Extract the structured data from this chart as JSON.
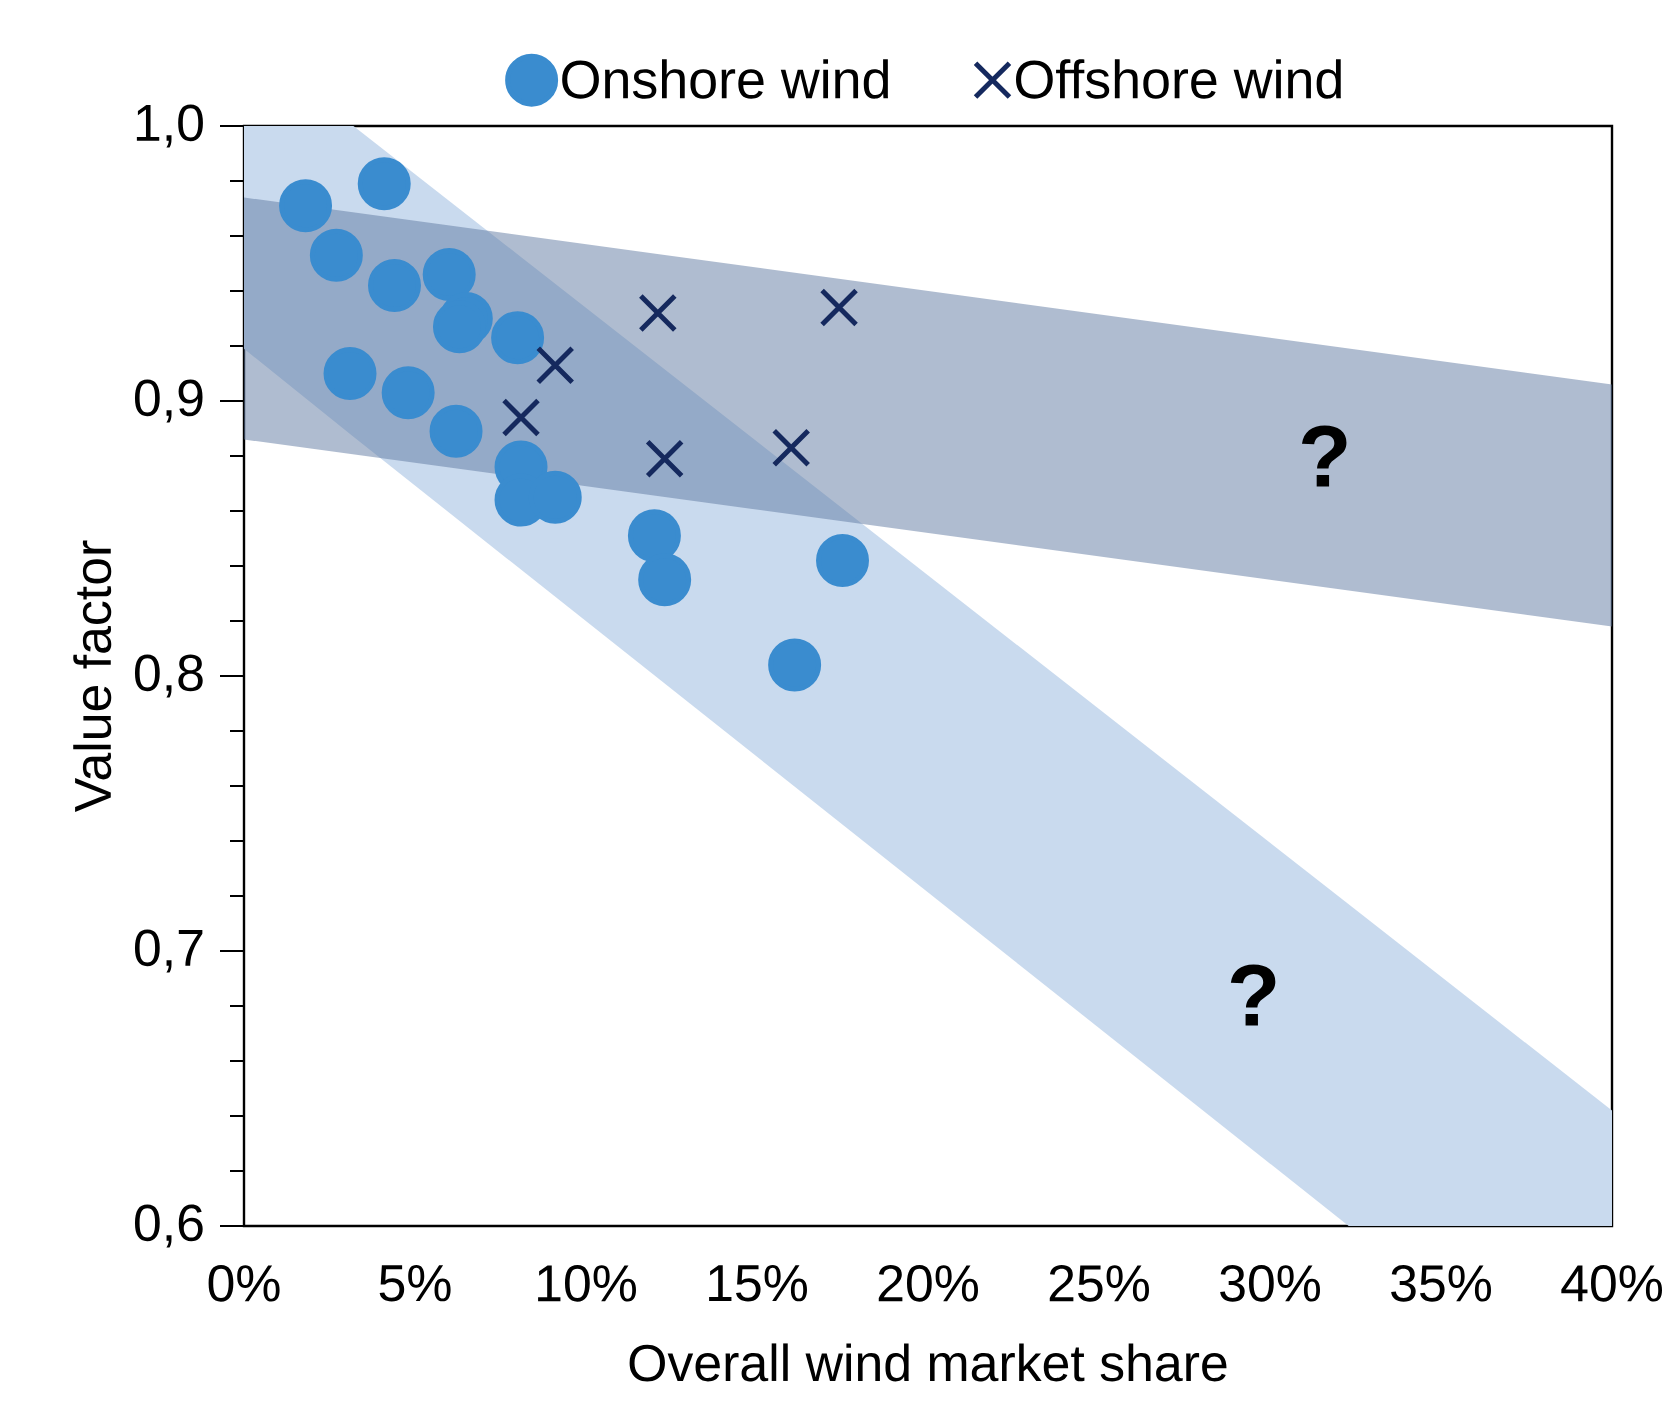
{
  "chart_data": {
    "type": "scatter",
    "xlabel": "Overall wind market share",
    "ylabel": "Value factor",
    "xlim": [
      0,
      0.4
    ],
    "ylim": [
      0.6,
      1.0
    ],
    "xticks": [
      {
        "value": 0,
        "label": "0%"
      },
      {
        "value": 0.05,
        "label": "5%"
      },
      {
        "value": 0.1,
        "label": "10%"
      },
      {
        "value": 0.15,
        "label": "15%"
      },
      {
        "value": 0.2,
        "label": "20%"
      },
      {
        "value": 0.25,
        "label": "25%"
      },
      {
        "value": 0.3,
        "label": "30%"
      },
      {
        "value": 0.35,
        "label": "35%"
      },
      {
        "value": 0.4,
        "label": "40%"
      }
    ],
    "yticks": [
      {
        "value": 0.6,
        "label": "0,6"
      },
      {
        "value": 0.7,
        "label": "0,7"
      },
      {
        "value": 0.8,
        "label": "0,8"
      },
      {
        "value": 0.9,
        "label": "0,9"
      },
      {
        "value": 1.0,
        "label": "1,0"
      }
    ],
    "grid": false,
    "legend": "top",
    "series": [
      {
        "type": "area",
        "color": "#c9daee",
        "x": [
          0,
          0.032,
          0.323,
          0.4
        ],
        "values": [
          null,
          null,
          null,
          null
        ],
        "upper": [
          1.0,
          1.0,
          0.717,
          0.642
        ],
        "lower": [
          0.919,
          0.887,
          0.6,
          0.6
        ]
      },
      {
        "type": "area",
        "color": "#5f7aa2",
        "x": [
          0,
          0.4
        ],
        "values": [
          null,
          null
        ],
        "upper": [
          0.974,
          0.906
        ],
        "lower": [
          0.886,
          0.818
        ]
      },
      {
        "name": "Onshore wind",
        "marker": "circle",
        "color": "#3a8ccf",
        "x": [
          0.018,
          0.041,
          0.027,
          0.044,
          0.06,
          0.065,
          0.063,
          0.08,
          0.031,
          0.048,
          0.062,
          0.081,
          0.081,
          0.091,
          0.12,
          0.123,
          0.175,
          0.161
        ],
        "values": [
          0.971,
          0.979,
          0.953,
          0.942,
          0.946,
          0.93,
          0.927,
          0.923,
          0.91,
          0.903,
          0.889,
          0.876,
          0.864,
          0.865,
          0.851,
          0.835,
          0.842,
          0.804
        ]
      },
      {
        "name": "Offshore wind",
        "marker": "cross",
        "color": "#15295e",
        "x": [
          0.121,
          0.174,
          0.091,
          0.081,
          0.123,
          0.16
        ],
        "values": [
          0.932,
          0.934,
          0.913,
          0.894,
          0.879,
          0.883
        ]
      }
    ],
    "annotations": [
      "?",
      "?"
    ]
  }
}
